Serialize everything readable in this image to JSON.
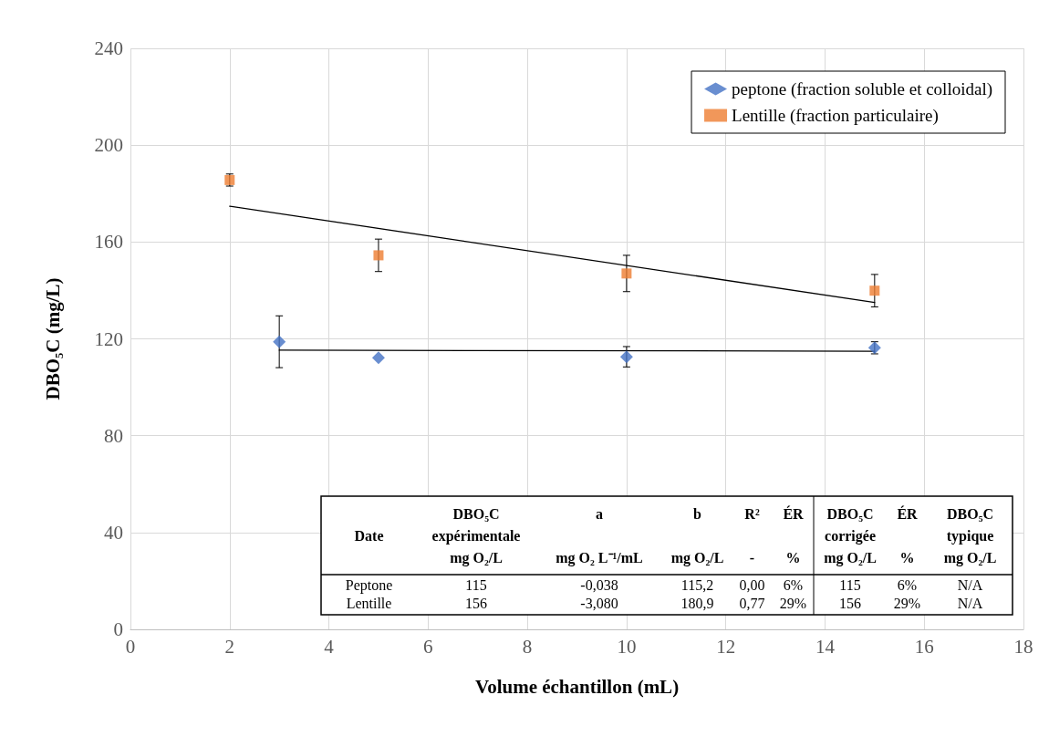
{
  "chart_data": {
    "type": "scatter",
    "xlabel": "Volume échantillon (mL)",
    "ylabel": "DBO₅C (mg/L)",
    "xlim": [
      0,
      18
    ],
    "xticks": [
      0,
      2,
      4,
      6,
      8,
      10,
      12,
      14,
      16,
      18
    ],
    "ylim": [
      0,
      240
    ],
    "yticks": [
      0,
      40,
      80,
      120,
      160,
      200,
      240
    ],
    "grid": true,
    "legend": "top right",
    "series": [
      {
        "name": "peptone (fraction soluble et colloidal)",
        "color": "#4472c4",
        "marker": "diamond",
        "x": [
          3,
          5,
          10,
          15
        ],
        "values": [
          118.8,
          112.2,
          112.6,
          116.3
        ],
        "errors": [
          10.7,
          null,
          4.2,
          2.5
        ]
      },
      {
        "name": "Lentille (fraction particulaire)",
        "color": "#ed7d31",
        "marker": "square",
        "x": [
          2,
          5,
          10,
          15
        ],
        "values": [
          185.6,
          154.5,
          147.0,
          139.9
        ],
        "errors": [
          2.5,
          6.7,
          7.5,
          6.7
        ]
      },
      {
        "type": "line",
        "color": "#000000",
        "marker": "none",
        "x": [
          3,
          15
        ],
        "values": [
          115.3,
          114.9
        ]
      },
      {
        "type": "line",
        "color": "#000000",
        "marker": "none",
        "x": [
          2,
          15
        ],
        "values": [
          174.8,
          135.0
        ]
      }
    ],
    "annotations": [
      "Date",
      "DBO₅C\nexpérimentale\nmg O₂/L",
      "a\n\nmg O₂ L⁻¹/mL",
      "b\n\nmg O₂/L",
      "R²\n\n-",
      "ÉR\n\n%",
      "DBO₅C\ncorrigée\nmg O₂/L",
      "ÉR\n\n%",
      "DBO₅C\ntypique\nmg O₂/L",
      "Peptone",
      "115",
      "-0,038",
      "115,2",
      "0,00",
      "6%",
      "115",
      "6%",
      "N/A",
      "Lentille",
      "156",
      "-3,080",
      "180,9",
      "0,77",
      "29%",
      "156",
      "29%",
      "N/A"
    ]
  }
}
